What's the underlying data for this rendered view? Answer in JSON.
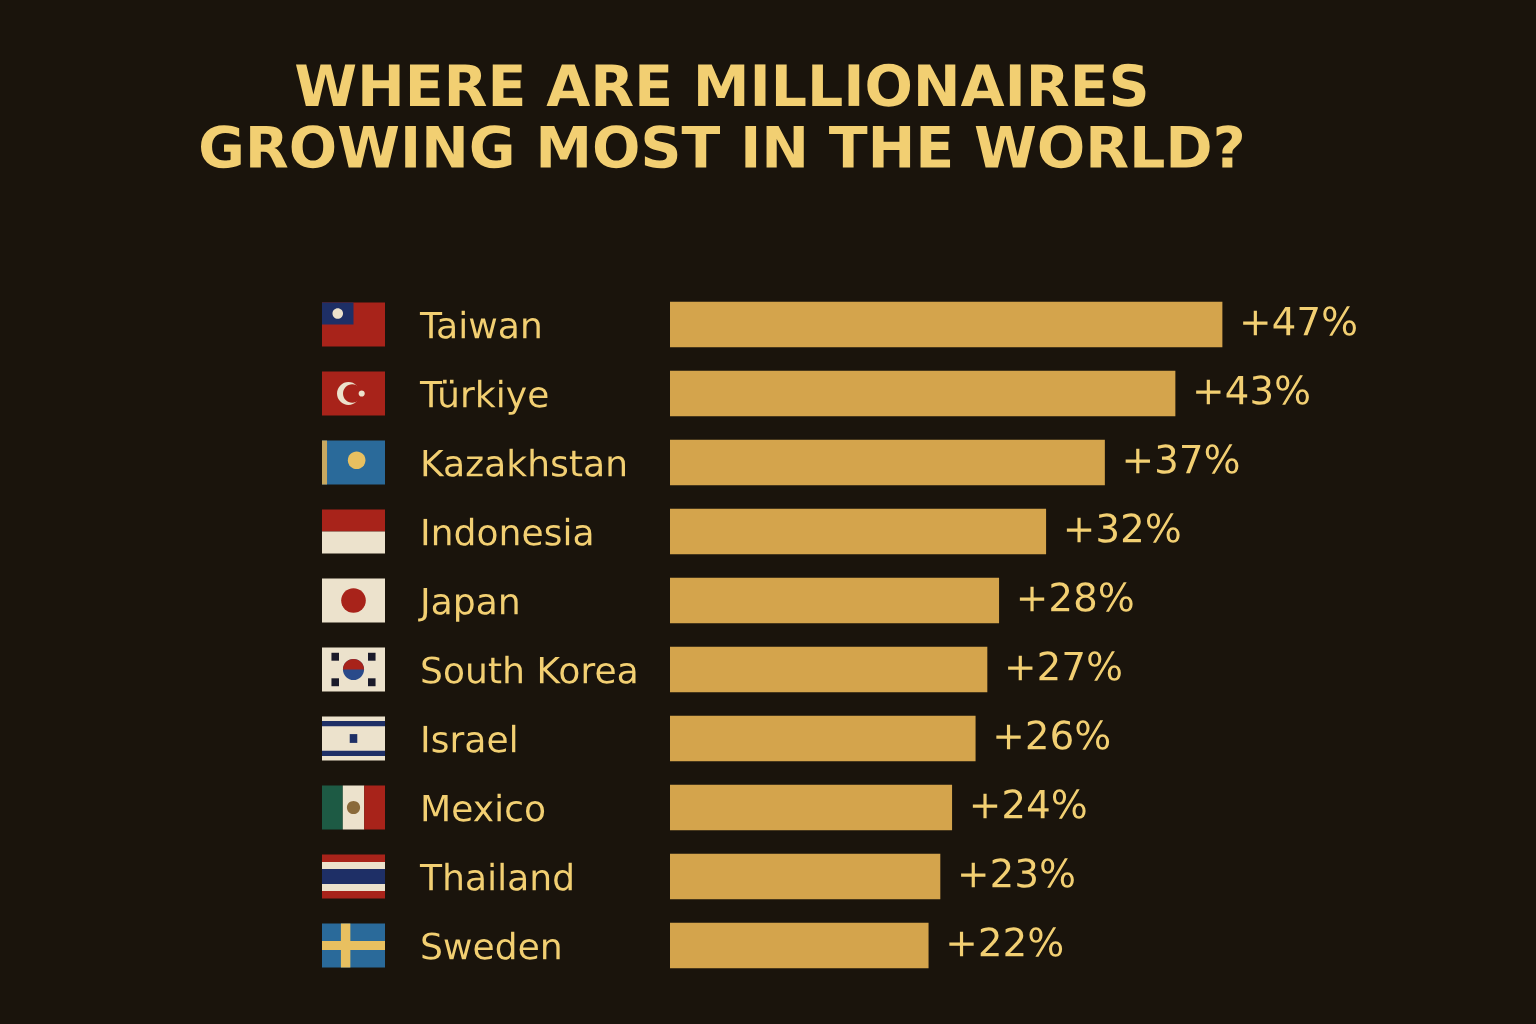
{
  "chart_data": {
    "type": "bar",
    "orientation": "horizontal",
    "title": "WHERE ARE MILLIONAIRES\nGROWING MOST IN THE WORLD?",
    "categories": [
      "Taiwan",
      "Türkiye",
      "Kazakhstan",
      "Indonesia",
      "Japan",
      "South Korea",
      "Israel",
      "Mexico",
      "Thailand",
      "Sweden"
    ],
    "values": [
      47,
      43,
      37,
      32,
      28,
      27,
      26,
      24,
      23,
      22
    ],
    "value_labels": [
      "+47%",
      "+43%",
      "+37%",
      "+32%",
      "+28%",
      "+27%",
      "+26%",
      "+24%",
      "+23%",
      "+22%"
    ],
    "color": "#d4a44c",
    "tick_labels": "y"
  }
}
